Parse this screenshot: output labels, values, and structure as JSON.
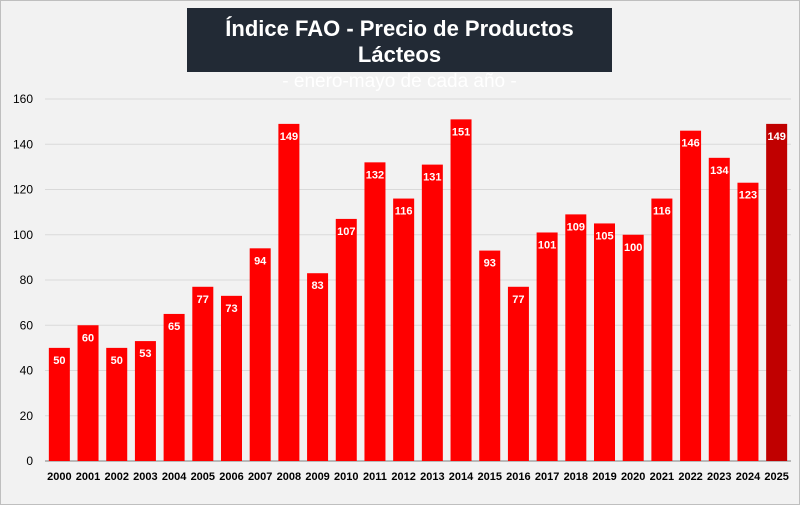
{
  "colors": {
    "bar": "#ff0000",
    "bar_highlight": "#c00000",
    "title_bg": "#222a35",
    "background": "#f2f2f2",
    "grid": "#d9d9d9"
  },
  "chart_data": {
    "type": "bar",
    "title": "Índice FAO - Precio de Productos Lácteos",
    "subtitle": "- enero-mayo de cada año -",
    "xlabel": "",
    "ylabel": "",
    "ylim": [
      0,
      160
    ],
    "yticks": [
      0,
      20,
      40,
      60,
      80,
      100,
      120,
      140,
      160
    ],
    "grid": true,
    "categories": [
      "2000",
      "2001",
      "2002",
      "2003",
      "2004",
      "2005",
      "2006",
      "2007",
      "2008",
      "2009",
      "2010",
      "2011",
      "2012",
      "2013",
      "2014",
      "2015",
      "2016",
      "2017",
      "2018",
      "2019",
      "2020",
      "2021",
      "2022",
      "2023",
      "2024",
      "2025"
    ],
    "values": [
      50,
      60,
      50,
      53,
      65,
      77,
      73,
      94,
      149,
      83,
      107,
      132,
      116,
      131,
      151,
      93,
      77,
      101,
      109,
      105,
      100,
      116,
      146,
      134,
      123,
      149
    ],
    "highlight_last": true
  }
}
